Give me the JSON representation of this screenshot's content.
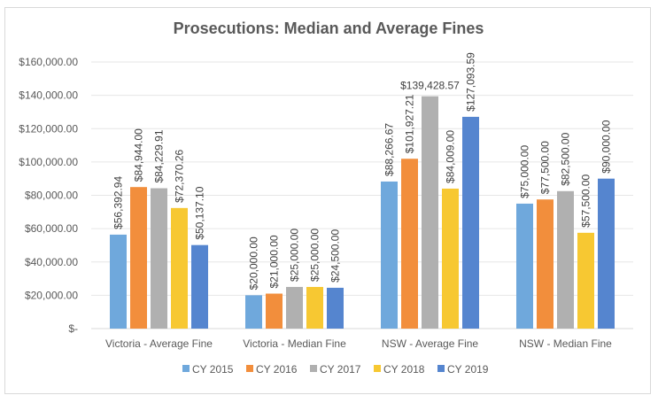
{
  "chart_data": {
    "type": "bar",
    "title": "Prosecutions: Median and Average Fines",
    "xlabel": "",
    "ylabel": "",
    "categories": [
      "Victoria - Average Fine",
      "Victoria - Median Fine",
      "NSW - Average Fine",
      "NSW - Median Fine"
    ],
    "series": [
      {
        "name": "CY 2015",
        "color": "#6fa8dc",
        "values": [
          56392.94,
          20000.0,
          88266.67,
          75000.0
        ],
        "labels": [
          "$56,392.94",
          "$20,000.00",
          "$88,266.67",
          "$75,000.00"
        ]
      },
      {
        "name": "CY 2016",
        "color": "#f28e3c",
        "values": [
          84944.0,
          21000.0,
          101927.21,
          77500.0
        ],
        "labels": [
          "$84,944.00",
          "$21,000.00",
          "$101,927.21",
          "$77,500.00"
        ]
      },
      {
        "name": "CY 2017",
        "color": "#b0b0b0",
        "values": [
          84229.91,
          25000.0,
          139428.57,
          82500.0
        ],
        "labels": [
          "$84,229.91",
          "$25,000.00",
          "$139,428.57",
          "$82,500.00"
        ]
      },
      {
        "name": "CY 2018",
        "color": "#f7c832",
        "values": [
          72370.26,
          25000.0,
          84009.0,
          57500.0
        ],
        "labels": [
          "$72,370.26",
          "$25,000.00",
          "$84,009.00",
          "$57,500.00"
        ]
      },
      {
        "name": "CY 2019",
        "color": "#5585cf",
        "values": [
          50137.1,
          24500.0,
          127093.59,
          90000.0
        ],
        "labels": [
          "$50,137.10",
          "$24,500.00",
          "$127,093.59",
          "$90,000.00"
        ]
      }
    ],
    "horizontal_labels": [
      [
        false,
        false,
        false,
        false
      ],
      [
        false,
        false,
        false,
        false
      ],
      [
        false,
        false,
        true,
        false
      ],
      [
        false,
        false,
        false,
        false
      ],
      [
        false,
        false,
        false,
        false
      ]
    ],
    "ylim": [
      0,
      160000
    ],
    "yticks": [
      0,
      20000,
      40000,
      60000,
      80000,
      100000,
      120000,
      140000,
      160000
    ],
    "ytick_labels": [
      "$-",
      "$20,000.00",
      "$40,000.00",
      "$60,000.00",
      "$80,000.00",
      "$100,000.00",
      "$120,000.00",
      "$140,000.00",
      "$160,000.00"
    ],
    "grid": true,
    "legend_position": "bottom"
  }
}
